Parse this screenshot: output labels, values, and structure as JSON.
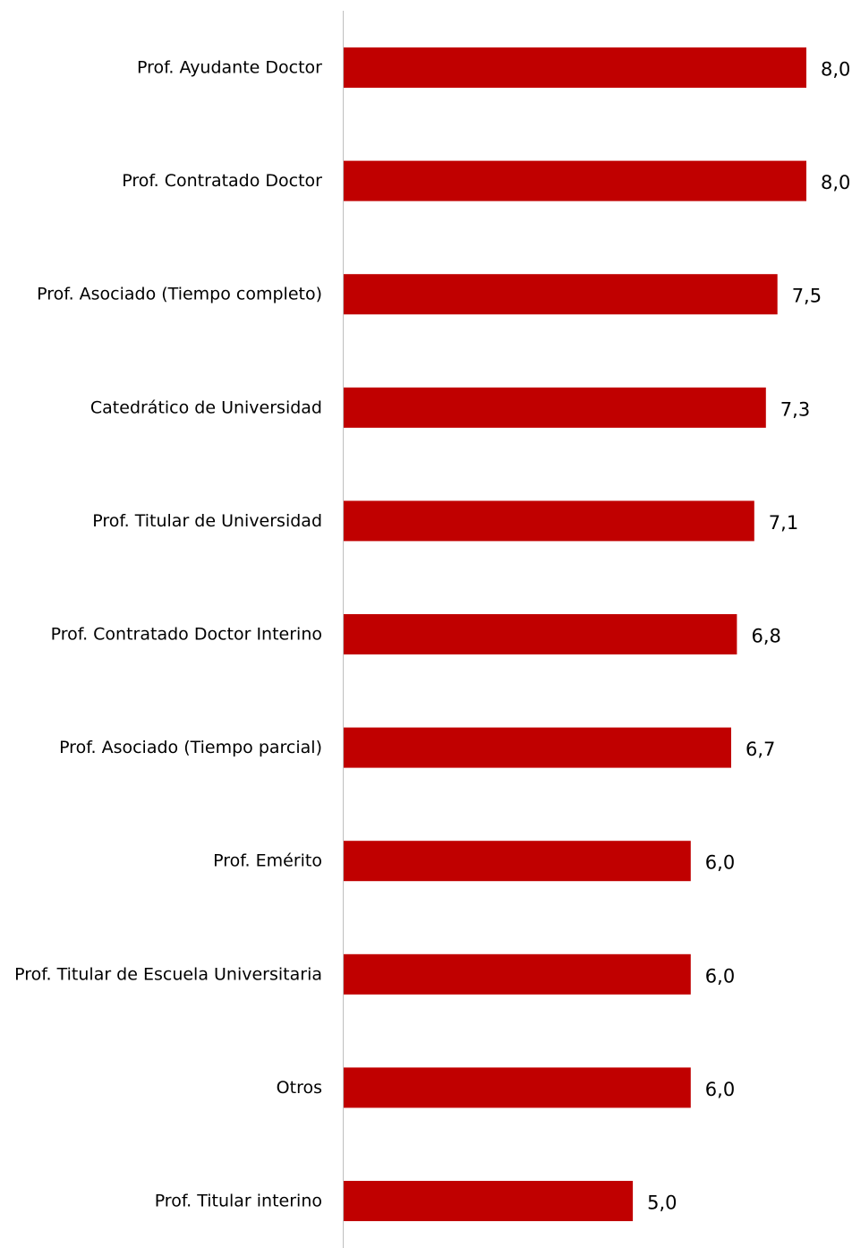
{
  "chart_data": {
    "type": "bar",
    "orientation": "horizontal",
    "categories": [
      "Prof. Ayudante Doctor",
      "Prof. Contratado Doctor",
      "Prof. Asociado (Tiempo completo)",
      "Catedrático de Universidad",
      "Prof. Titular de Universidad",
      "Prof. Contratado Doctor Interino",
      "Prof. Asociado (Tiempo parcial)",
      "Prof. Emérito",
      "Prof. Titular de Escuela Universitaria",
      "Otros",
      "Prof. Titular interino"
    ],
    "values": [
      8.0,
      8.0,
      7.5,
      7.3,
      7.1,
      6.8,
      6.7,
      6.0,
      6.0,
      6.0,
      5.0
    ],
    "value_labels": [
      "8,0",
      "8,0",
      "7,5",
      "7,3",
      "7,1",
      "6,8",
      "6,7",
      "6,0",
      "6,0",
      "6,0",
      "5,0"
    ],
    "xlim": [
      0,
      8
    ],
    "grid": false,
    "legend": "none",
    "title": "",
    "xlabel": "",
    "ylabel": "",
    "colors": {
      "bar": "#C00000",
      "axis": "#BFBFBF"
    }
  }
}
